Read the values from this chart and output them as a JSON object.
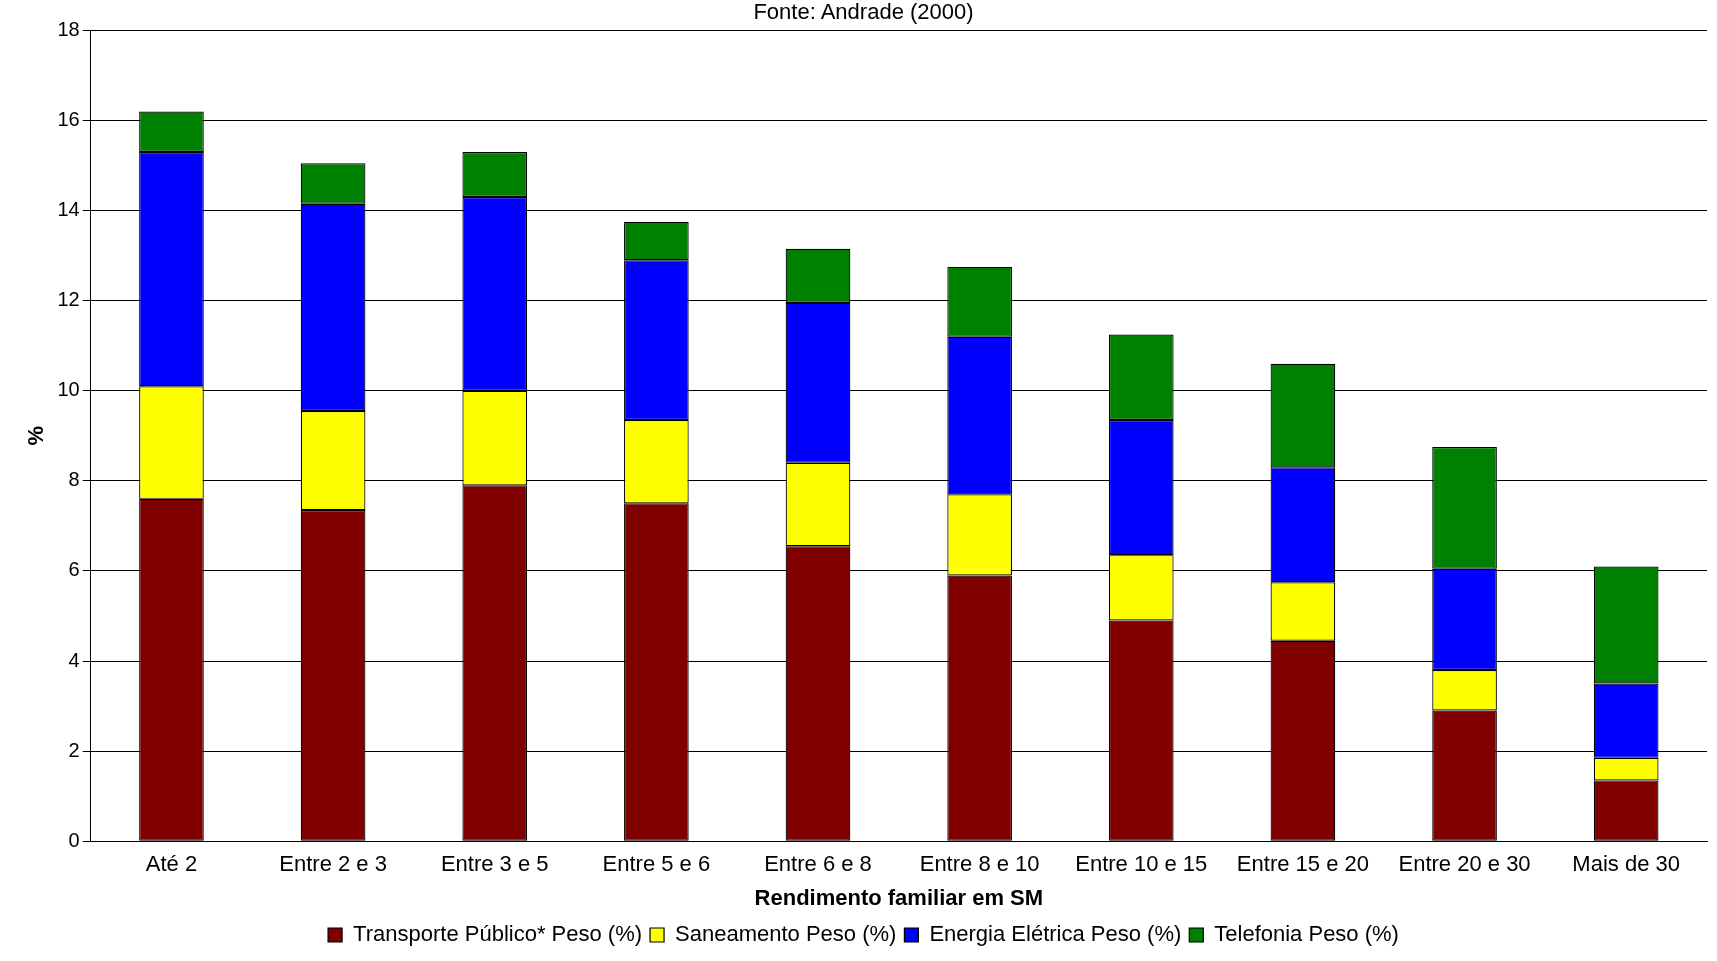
{
  "chart_data": {
    "type": "bar",
    "title": "Fonte: Andrade (2000)",
    "xlabel": "Rendimento familiar em SM",
    "ylabel": "%",
    "categories": [
      "Até 2",
      "Entre 2 e 3",
      "Entre 3 e 5",
      "Entre 5 e 6",
      "Entre 6 e 8",
      "Entre 8 e 10",
      "Entre 10 e 15",
      "Entre 15 e 20",
      "Entre 20 e 30",
      "Mais de 30"
    ],
    "stacked": true,
    "series": [
      {
        "name": "Transporte Público* Peso (%)",
        "color": "#800000",
        "values": [
          7.6,
          7.35,
          7.9,
          7.5,
          6.55,
          5.9,
          4.9,
          4.45,
          2.9,
          1.35
        ]
      },
      {
        "name": "Saneamento Peso (%)",
        "color": "#ffff00",
        "values": [
          2.5,
          2.2,
          2.1,
          1.85,
          1.85,
          1.8,
          1.45,
          1.3,
          0.9,
          0.5
        ]
      },
      {
        "name": "Energia Elétrica Peso (%)",
        "color": "#0000ff",
        "values": [
          5.2,
          4.6,
          4.3,
          3.55,
          3.55,
          3.5,
          3.0,
          2.55,
          2.25,
          1.65
        ]
      },
      {
        "name": "Telefonia Peso (%)",
        "color": "#008000",
        "values": [
          0.9,
          0.9,
          1.0,
          0.85,
          1.2,
          1.55,
          1.9,
          2.3,
          2.7,
          2.6
        ]
      }
    ],
    "ylim": [
      0,
      18
    ],
    "yticks": [
      0,
      2,
      4,
      6,
      8,
      10,
      12,
      14,
      16,
      18
    ],
    "grid": "y",
    "legend": "bottom"
  }
}
